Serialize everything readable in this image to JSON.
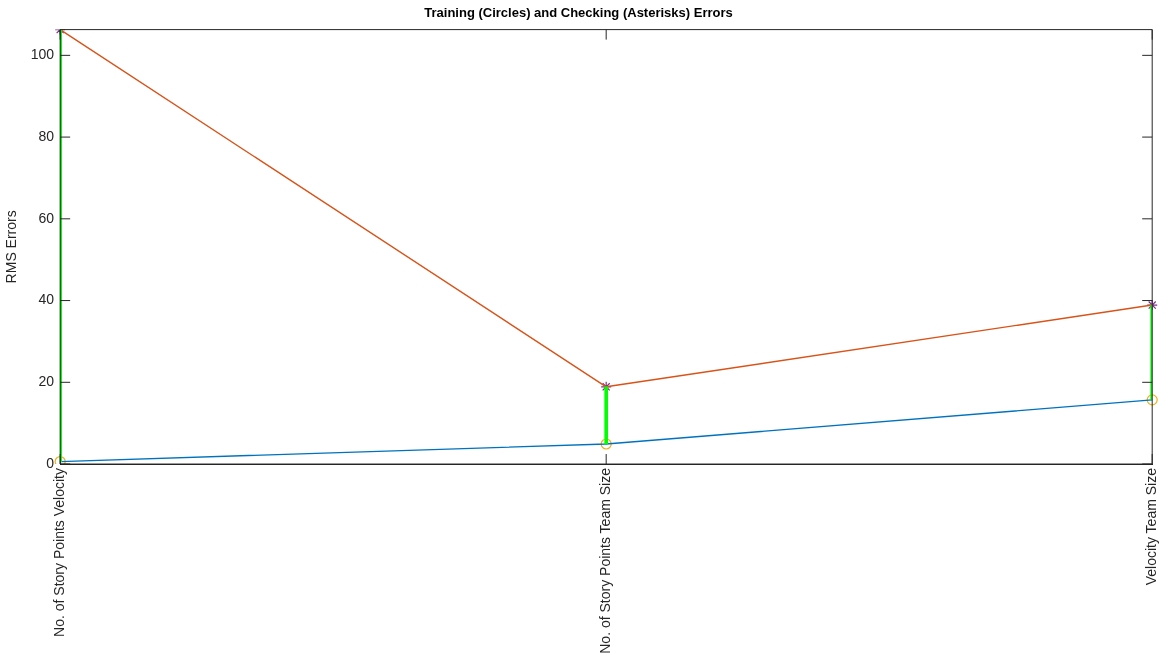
{
  "chart_data": {
    "type": "line",
    "title": "Training (Circles) and Checking (Asterisks) Errors",
    "ylabel": "RMS Errors",
    "categories": [
      "No. of Story Points Velocity",
      "No. of Story Points Team Size",
      "Velocity Team Size"
    ],
    "ylim": [
      0,
      106.3
    ],
    "yticks": [
      0,
      20,
      40,
      60,
      80,
      100
    ],
    "series": [
      {
        "type": "bar",
        "color": "#00ff00",
        "base": [
          0.6,
          4.9,
          15.7
        ],
        "values": [
          105.7,
          14,
          23.2
        ]
      },
      {
        "color": "#0072bd",
        "values": [
          0.6,
          4.9,
          15.7
        ],
        "marker": "none"
      },
      {
        "color": "#d95319",
        "values": [
          106.3,
          18.9,
          38.9
        ],
        "marker": "none"
      },
      {
        "type": "scatter",
        "color": "#edb120",
        "values": [
          0.6,
          4.9,
          15.7
        ],
        "marker": "circle"
      },
      {
        "type": "scatter",
        "color": "#7e2f8e",
        "values": [
          106.3,
          18.9,
          38.9
        ],
        "marker": "cross"
      }
    ],
    "grid": false,
    "legend": false
  }
}
